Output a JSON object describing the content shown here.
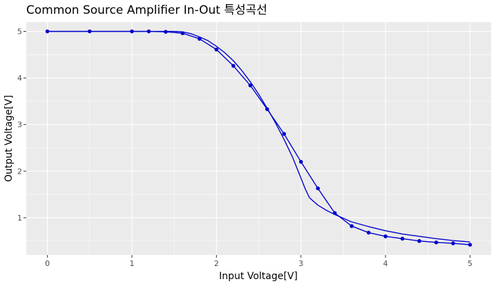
{
  "chart_data": {
    "type": "line",
    "title": "Common Source Amplifier In-Out 특성곡선",
    "xlabel": "Input Voltage[V]",
    "ylabel": "Output Voltage[V]",
    "xlim": [
      -0.25,
      5.25
    ],
    "ylim": [
      0.2,
      5.2
    ],
    "x_ticks": [
      0,
      1,
      2,
      3,
      4,
      5
    ],
    "y_ticks": [
      1,
      2,
      3,
      4,
      5
    ],
    "grid": true,
    "colors": {
      "panel": "#ebebeb",
      "grid": "#ffffff",
      "series": "#0000cc",
      "tick": "#4d4d4d"
    },
    "series": [
      {
        "style": "line+points",
        "x": [
          0,
          0.5,
          1,
          1.2,
          1.4,
          1.6,
          1.8,
          2.0,
          2.2,
          2.4,
          2.6,
          2.8,
          3.0,
          3.2,
          3.4,
          3.6,
          3.8,
          4.0,
          4.2,
          4.4,
          4.6,
          4.8,
          5.0
        ],
        "y": [
          5.0,
          5.0,
          5.0,
          5.0,
          4.99,
          4.96,
          4.84,
          4.61,
          4.26,
          3.84,
          3.33,
          2.8,
          2.2,
          1.63,
          1.1,
          0.82,
          0.68,
          0.6,
          0.55,
          0.5,
          0.47,
          0.45,
          0.42
        ]
      },
      {
        "style": "smooth-line",
        "x": [
          0,
          1.0,
          1.4,
          1.5,
          1.6,
          1.7,
          1.8,
          1.9,
          2.0,
          2.1,
          2.2,
          2.3,
          2.4,
          2.5,
          2.6,
          2.7,
          2.8,
          2.9,
          3.0,
          3.05,
          3.1,
          3.2,
          3.3,
          3.4,
          3.5,
          3.6,
          3.8,
          4.0,
          4.2,
          4.4,
          4.6,
          4.8,
          5.0
        ],
        "y": [
          5.0,
          5.0,
          5.0,
          5.0,
          4.99,
          4.95,
          4.88,
          4.8,
          4.68,
          4.54,
          4.37,
          4.16,
          3.92,
          3.65,
          3.35,
          3.03,
          2.68,
          2.3,
          1.85,
          1.62,
          1.43,
          1.27,
          1.16,
          1.07,
          0.99,
          0.91,
          0.81,
          0.72,
          0.65,
          0.6,
          0.55,
          0.51,
          0.48
        ]
      }
    ]
  }
}
